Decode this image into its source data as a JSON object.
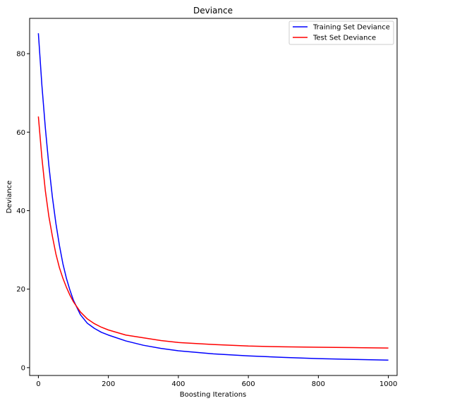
{
  "chart_data": {
    "type": "line",
    "title": "Deviance",
    "xlabel": "Boosting Iterations",
    "ylabel": "Deviance",
    "xlim": [
      -25,
      1025
    ],
    "ylim": [
      -2,
      89
    ],
    "xticks": [
      0,
      200,
      400,
      600,
      800,
      1000
    ],
    "yticks": [
      0,
      20,
      40,
      60,
      80
    ],
    "grid": false,
    "legend_position": "top-right",
    "x": [
      0,
      10,
      20,
      30,
      40,
      50,
      60,
      70,
      80,
      90,
      100,
      120,
      140,
      160,
      180,
      200,
      250,
      300,
      350,
      400,
      500,
      600,
      700,
      800,
      900,
      1000
    ],
    "series": [
      {
        "name": "Training Set Deviance",
        "color": "#0000ff",
        "values": [
          85.2,
          72.0,
          61.0,
          51.5,
          43.5,
          36.8,
          31.2,
          26.5,
          22.8,
          19.8,
          17.2,
          13.5,
          11.3,
          10.0,
          9.0,
          8.3,
          6.8,
          5.7,
          4.9,
          4.3,
          3.5,
          3.0,
          2.6,
          2.3,
          2.1,
          1.9
        ]
      },
      {
        "name": "Test Set Deviance",
        "color": "#ff0000",
        "values": [
          64.0,
          53.5,
          45.0,
          38.5,
          33.5,
          29.0,
          25.5,
          22.8,
          20.5,
          18.5,
          16.8,
          14.2,
          12.4,
          11.2,
          10.3,
          9.6,
          8.3,
          7.6,
          6.9,
          6.4,
          5.9,
          5.5,
          5.3,
          5.2,
          5.1,
          5.0
        ]
      }
    ]
  }
}
